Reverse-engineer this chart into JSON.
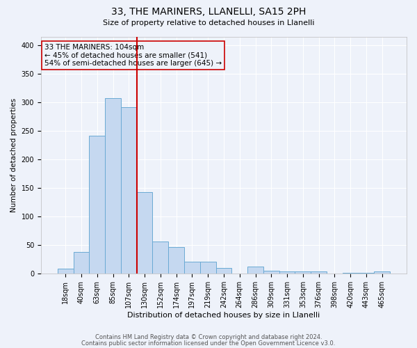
{
  "title1": "33, THE MARINERS, LLANELLI, SA15 2PH",
  "title2": "Size of property relative to detached houses in Llanelli",
  "xlabel": "Distribution of detached houses by size in Llanelli",
  "ylabel": "Number of detached properties",
  "footnote1": "Contains HM Land Registry data © Crown copyright and database right 2024.",
  "footnote2": "Contains public sector information licensed under the Open Government Licence v3.0.",
  "bar_labels": [
    "18sqm",
    "40sqm",
    "63sqm",
    "85sqm",
    "107sqm",
    "130sqm",
    "152sqm",
    "174sqm",
    "197sqm",
    "219sqm",
    "242sqm",
    "264sqm",
    "286sqm",
    "309sqm",
    "331sqm",
    "353sqm",
    "376sqm",
    "398sqm",
    "420sqm",
    "443sqm",
    "465sqm"
  ],
  "bar_values": [
    8,
    38,
    241,
    307,
    291,
    143,
    56,
    46,
    20,
    20,
    9,
    0,
    12,
    5,
    4,
    3,
    4,
    0,
    1,
    1,
    4
  ],
  "bar_color": "#c5d8f0",
  "bar_edge_color": "#6aaad4",
  "vline_x": 4.5,
  "vline_color": "#cc0000",
  "annotation_text": "33 THE MARINERS: 104sqm\n← 45% of detached houses are smaller (541)\n54% of semi-detached houses are larger (645) →",
  "bg_color": "#eef2fa",
  "grid_color": "#ffffff",
  "ylim": [
    0,
    415
  ],
  "yticks": [
    0,
    50,
    100,
    150,
    200,
    250,
    300,
    350,
    400
  ]
}
